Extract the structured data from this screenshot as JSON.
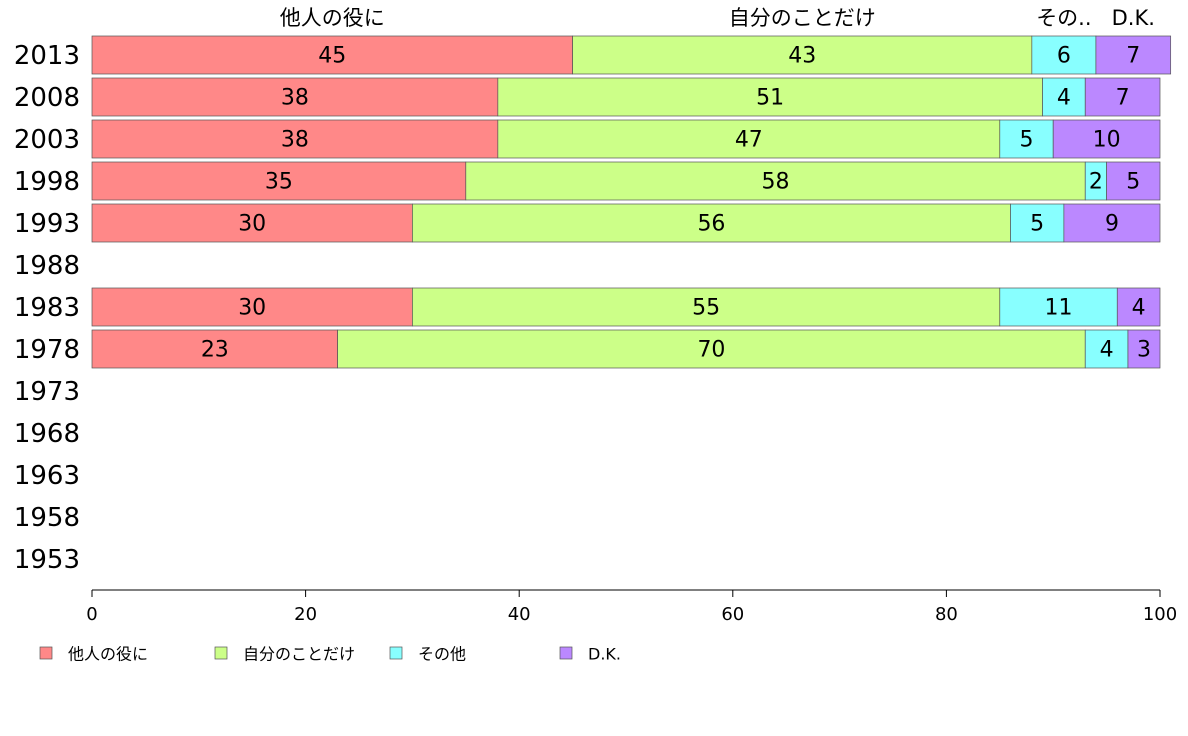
{
  "chart_data": {
    "type": "bar",
    "orientation": "horizontal",
    "stacked": true,
    "categories": [
      "2013",
      "2008",
      "2003",
      "1998",
      "1993",
      "1988",
      "1983",
      "1978",
      "1973",
      "1968",
      "1963",
      "1958",
      "1953"
    ],
    "series": [
      {
        "name": "他人の役に",
        "color": "#ff8888",
        "values": [
          45,
          38,
          38,
          35,
          30,
          null,
          30,
          23,
          null,
          null,
          null,
          null,
          null
        ]
      },
      {
        "name": "自分のことだけ",
        "color": "#ccff88",
        "values": [
          43,
          51,
          47,
          58,
          56,
          null,
          55,
          70,
          null,
          null,
          null,
          null,
          null
        ]
      },
      {
        "name": "その他",
        "color": "#88ffff",
        "values": [
          6,
          4,
          5,
          2,
          5,
          null,
          11,
          4,
          null,
          null,
          null,
          null,
          null
        ]
      },
      {
        "name": "D.K.",
        "color": "#bb88ff",
        "values": [
          7,
          7,
          10,
          5,
          9,
          null,
          4,
          3,
          null,
          null,
          null,
          null,
          null
        ]
      }
    ],
    "xlim": [
      0,
      100
    ],
    "xticks": [
      0,
      20,
      40,
      60,
      80,
      100
    ],
    "xtick_labels": [
      "0",
      "20",
      "40",
      "60",
      "80",
      "100"
    ],
    "top_labels": [
      "他人の役に",
      "自分のことだけ",
      "その..",
      "D.K."
    ],
    "legend_labels": [
      "他人の役に",
      "自分のことだけ",
      "その他",
      "D.K."
    ],
    "legend_position": "bottom",
    "grid": false
  }
}
